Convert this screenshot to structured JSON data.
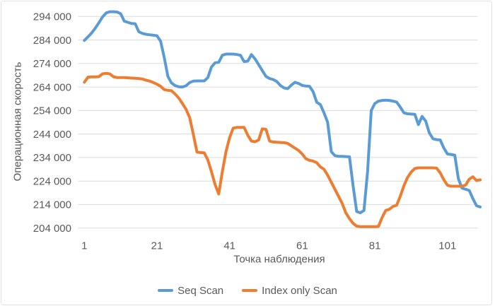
{
  "chart_data": {
    "type": "line",
    "title": "",
    "xlabel": "Точка наблюдения",
    "ylabel": "Операционная скорость",
    "x_ticks": [
      1,
      21,
      41,
      61,
      81,
      101
    ],
    "x_range": [
      1,
      110
    ],
    "y_ticks": [
      204000,
      214000,
      224000,
      234000,
      244000,
      254000,
      264000,
      274000,
      284000,
      294000
    ],
    "y_tick_labels": [
      "204 000",
      "214 000",
      "224 000",
      "234 000",
      "244 000",
      "254 000",
      "264 000",
      "274 000",
      "284 000",
      "294 000"
    ],
    "ylim": [
      204000,
      294000
    ],
    "grid": true,
    "legend_position": "bottom",
    "grid_color": "#DCDCDC",
    "text_color": "#595959",
    "series": [
      {
        "name": "Seq Scan",
        "color": "#5B9BD5",
        "values": [
          283800,
          285300,
          287000,
          289000,
          291300,
          293800,
          295500,
          296000,
          296000,
          295900,
          295200,
          292000,
          291500,
          291000,
          290900,
          287500,
          286800,
          286400,
          286200,
          286000,
          285800,
          283500,
          276500,
          268500,
          265700,
          264600,
          264100,
          264000,
          264500,
          265900,
          266500,
          266600,
          266600,
          266600,
          268000,
          272500,
          274300,
          274500,
          277500,
          278000,
          278000,
          278000,
          277800,
          277500,
          274800,
          275000,
          277800,
          276000,
          273500,
          271000,
          268500,
          267600,
          267200,
          266300,
          264600,
          263600,
          263300,
          264800,
          266000,
          265500,
          264700,
          264400,
          264300,
          262000,
          257500,
          256500,
          253000,
          249000,
          236500,
          234800,
          234500,
          234500,
          234400,
          234300,
          222000,
          211000,
          210500,
          211500,
          228000,
          254000,
          257000,
          258000,
          258300,
          258400,
          258300,
          258000,
          257600,
          255500,
          253000,
          252600,
          252500,
          252400,
          248000,
          251500,
          249500,
          244500,
          242000,
          241600,
          241500,
          238000,
          235500,
          235300,
          235000,
          225000,
          221000,
          220500,
          220000,
          216500,
          213500,
          213000
        ]
      },
      {
        "name": "Index only Scan",
        "color": "#ED7D31",
        "values": [
          266000,
          268200,
          268300,
          268300,
          268400,
          269600,
          269800,
          269600,
          268400,
          268000,
          268000,
          268000,
          267900,
          267800,
          267700,
          267600,
          267400,
          266900,
          266500,
          265900,
          265200,
          264300,
          262900,
          262600,
          262400,
          261000,
          259300,
          257000,
          254500,
          251000,
          244000,
          236300,
          236100,
          236000,
          233000,
          228000,
          222500,
          218500,
          228000,
          236500,
          242500,
          246500,
          246800,
          246800,
          246800,
          243500,
          241000,
          240700,
          241500,
          246200,
          246000,
          241000,
          240600,
          240500,
          240400,
          240300,
          240000,
          239000,
          238000,
          237000,
          235500,
          233500,
          232800,
          232500,
          231800,
          230000,
          229000,
          226500,
          223500,
          220500,
          217500,
          214500,
          210500,
          208000,
          206000,
          204800,
          204600,
          204600,
          204600,
          204600,
          204600,
          204700,
          208500,
          211500,
          212000,
          213200,
          213700,
          217500,
          222000,
          225500,
          227800,
          229300,
          229600,
          229600,
          229600,
          229600,
          229600,
          229500,
          227500,
          224500,
          222200,
          221800,
          221800,
          221800,
          221800,
          222300,
          224800,
          225800,
          224200,
          224500
        ]
      }
    ]
  }
}
